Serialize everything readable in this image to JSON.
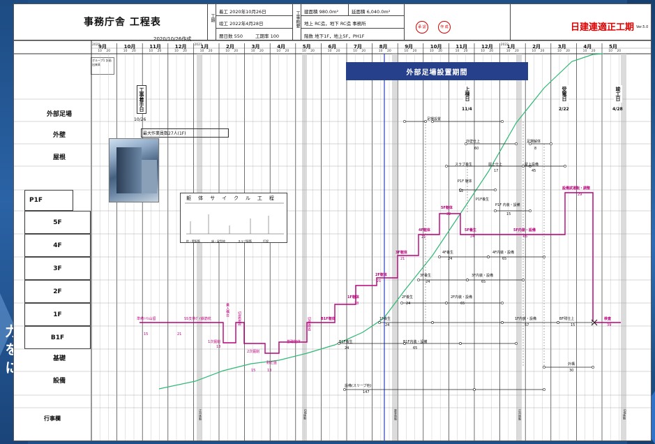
{
  "side_text": [
    "力",
    "を",
    "に"
  ],
  "header": {
    "title": "事務庁舎 工程表",
    "date_made": "2020/10/26作成",
    "period_label": "工期",
    "start": "着工 2020年10月26日",
    "finish": "竣工 2022年4月28日",
    "calendar_days": "暦日数  550",
    "work_days": "工期率  100",
    "summary_label": "工事概要",
    "building_area": "建面積 980.0m²",
    "floor_area": "延面積 6,040.0m²",
    "structure": "地上 RC造，地下 RC造  事務所",
    "floors": "階数 地下1F，地上5F，PH1F",
    "stamp1": "承 認",
    "stamp2": "作 成",
    "company": "日建連適正工期",
    "version": "Ver.5.0"
  },
  "months": [
    {
      "label": "9月",
      "year": "2020"
    },
    {
      "label": "10月",
      "year": ""
    },
    {
      "label": "11月",
      "year": ""
    },
    {
      "label": "12月",
      "year": ""
    },
    {
      "label": "1月",
      "year": "2021"
    },
    {
      "label": "2月",
      "year": ""
    },
    {
      "label": "3月",
      "year": ""
    },
    {
      "label": "4月",
      "year": ""
    },
    {
      "label": "5月",
      "year": ""
    },
    {
      "label": "6月",
      "year": ""
    },
    {
      "label": "7月",
      "year": ""
    },
    {
      "label": "8月",
      "year": ""
    },
    {
      "label": "9月",
      "year": ""
    },
    {
      "label": "10月",
      "year": ""
    },
    {
      "label": "11月",
      "year": ""
    },
    {
      "label": "12月",
      "year": ""
    },
    {
      "label": "1月",
      "year": "2022"
    },
    {
      "label": "2月",
      "year": ""
    },
    {
      "label": "3月",
      "year": ""
    },
    {
      "label": "4月",
      "year": ""
    },
    {
      "label": "5月",
      "year": ""
    }
  ],
  "rows": {
    "exterior_scaffold": "外部足場",
    "exterior_wall": "外壁",
    "roof": "屋根",
    "p1f": "P1F",
    "f5": "5F",
    "f4": "4F",
    "f3": "3F",
    "f2": "2F",
    "f1": "1F",
    "b1f": "B1F",
    "foundation": "基礎",
    "equipment": "設備",
    "events": "行事欄"
  },
  "banner": "外部足場設置期間",
  "milestones": {
    "start": "工事着手日",
    "start_date": "10/26",
    "topping": "上棟日",
    "topping_date": "11/4",
    "power": "受電日",
    "power_date": "2/22",
    "finish": "竣工日",
    "finish_date": "4/28"
  },
  "tasks": {
    "peak_workers": "最大作業員数27人(1F)",
    "scaffold_setup": "足場設置",
    "ext_wall_finish": "外壁仕上",
    "scaffold_remove": "足場解体",
    "slab_cure": "スラブ養生",
    "roof_finish": "屋上仕上",
    "roof_equip": "屋上設備",
    "p1f_frame": "P1F 躯体",
    "p1f_cure": "P1F養生",
    "p1f_interior": "P1F 内装・設備",
    "frame_5f": "5F躯体",
    "frame_4f": "4F躯体",
    "frame_3f": "3F躯体",
    "frame_2f": "2F躯体",
    "frame_1f": "1F躯体",
    "b1f_frame": "B1F躯体",
    "cure_5f": "5F養生",
    "cure_4f": "4F養生",
    "cure_3f": "3F養生",
    "cure_2f": "2F養生",
    "cure_1f": "1F養生",
    "cure_b1f": "B1F養生",
    "int_5f": "5F内装・設備",
    "int_4f": "4F内装・設備",
    "int_3f": "3F内装・設備",
    "int_2f": "2F内装・設備",
    "int_1f": "1F内装・設備",
    "int_b1f": "B1F内装・設備",
    "equip_test": "設備試運転・調整",
    "prep": "準備ｿｲﾙ山留",
    "ss_pile": "SS支持ｸﾞｲ鉄筋杭",
    "excavation": "1次掘削",
    "second_excavation": "2次掘削",
    "pile_cap": "床付け",
    "struts": "切梁架設",
    "struts_remove": "切梁撤去",
    "strut_install": "乗入構台",
    "base_frame": "基礎躯体",
    "soil_backfill": "耐圧盤",
    "sleeve": "設備(スリーブ他)",
    "exterior_works": "外構",
    "inspection": "検査",
    "misc_finish": "BF残仕上",
    "group": "グループ1 計画出来高"
  },
  "durations": {
    "d15": "15",
    "d21": "21",
    "d13": "13",
    "d8": "8",
    "d12": "12",
    "d17": "17",
    "d24": "24",
    "d28": "28",
    "d29": "29",
    "d45": "45",
    "d57": "57",
    "d60": "60",
    "d65": "65",
    "d66": "66",
    "d30": "30",
    "d147": "147",
    "d39": "39",
    "d22": "22"
  },
  "cycle": {
    "title": "躯体サイクル工程",
    "steps": [
      "鉄筋",
      "型枠",
      "打設",
      "養生",
      "墨出"
    ],
    "notes": [
      "柱・壁配筋",
      "床・梁型枠",
      "スラブ配筋",
      "打設"
    ]
  },
  "events_ticks": [
    "正月休暇",
    "GW休暇",
    "夏季休暇",
    "正月休暇",
    "GW休暇"
  ],
  "colors": {
    "frame": "#b8007a",
    "curve": "#2eb873",
    "banner": "#27408b",
    "red": "#e00000",
    "blue_line": "#2a3fc7"
  }
}
